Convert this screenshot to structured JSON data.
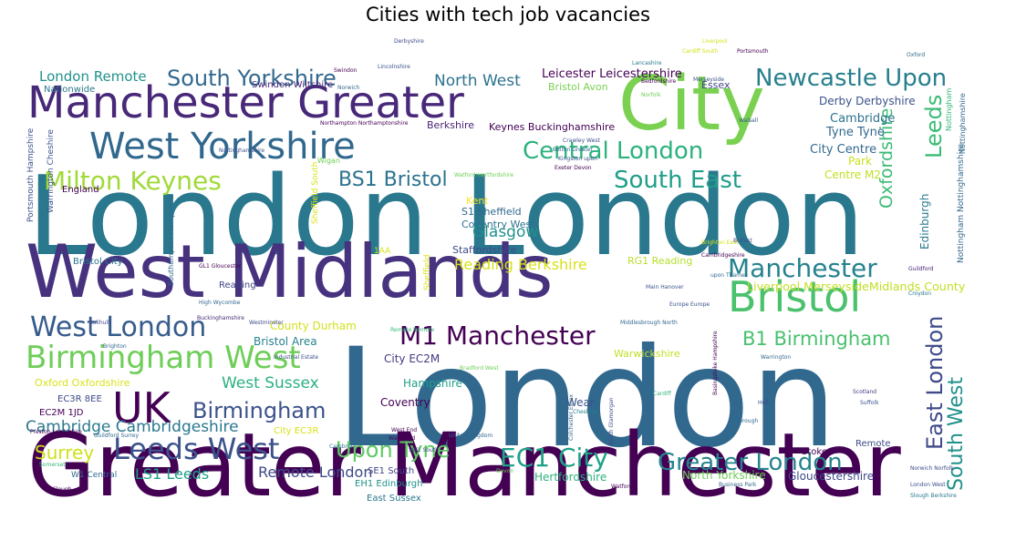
{
  "chart_data": {
    "type": "wordcloud",
    "title": "Cities with tech job vacancies",
    "background": "#ffffff",
    "colormap": "viridis",
    "words": [
      {
        "text": "London",
        "weight": 100,
        "color": "#31688e"
      },
      {
        "text": "London London",
        "weight": 88,
        "color": "#2a788e"
      },
      {
        "text": "Greater Manchester",
        "weight": 84,
        "color": "#440154"
      },
      {
        "text": "West Midlands",
        "weight": 70,
        "color": "#46327e"
      },
      {
        "text": "City",
        "weight": 62,
        "color": "#7ad151"
      },
      {
        "text": "Manchester Greater",
        "weight": 45,
        "color": "#482878"
      },
      {
        "text": "West Yorkshire",
        "weight": 38,
        "color": "#31688e"
      },
      {
        "text": "Bristol",
        "weight": 36,
        "color": "#4ac16d"
      },
      {
        "text": "UK",
        "weight": 34,
        "color": "#440154"
      },
      {
        "text": "Birmingham West",
        "weight": 30,
        "color": "#6ece58"
      },
      {
        "text": "Leeds West",
        "weight": 27,
        "color": "#3b528b"
      },
      {
        "text": "West London",
        "weight": 26,
        "color": "#365c8d"
      },
      {
        "text": "Milton Keynes",
        "weight": 24,
        "color": "#a0da39"
      },
      {
        "text": "M1 Manchester",
        "weight": 24,
        "color": "#440154"
      },
      {
        "text": "EC1 City",
        "weight": 24,
        "color": "#1fa187"
      },
      {
        "text": "Manchester",
        "weight": 23,
        "color": "#26828e"
      },
      {
        "text": "Newcastle Upon",
        "weight": 22,
        "color": "#277f8e"
      },
      {
        "text": "Central London",
        "weight": 22,
        "color": "#2db27d"
      },
      {
        "text": "Greater London",
        "weight": 22,
        "color": "#25848e"
      },
      {
        "text": "South East",
        "weight": 22,
        "color": "#1f9e89"
      },
      {
        "text": "South Yorkshire",
        "weight": 21,
        "color": "#31688e"
      },
      {
        "text": "Birmingham",
        "weight": 21,
        "color": "#3b528b"
      },
      {
        "text": "East London",
        "weight": 21,
        "color": "#3e4a89"
      },
      {
        "text": "Leeds",
        "weight": 20,
        "color": "#3bbb75"
      },
      {
        "text": "Upon Tyne",
        "weight": 20,
        "color": "#5ec962"
      },
      {
        "text": "South West",
        "weight": 20,
        "color": "#21918c"
      },
      {
        "text": "BS1 Bristol",
        "weight": 19,
        "color": "#2c728e"
      },
      {
        "text": "B1 Birmingham",
        "weight": 18,
        "color": "#48c16e"
      },
      {
        "text": "Surrey",
        "weight": 17,
        "color": "#d0e11c"
      },
      {
        "text": "Oxfordshire",
        "weight": 16,
        "color": "#3bbb75"
      },
      {
        "text": "Cambridge Cambridgeshire",
        "weight": 15,
        "color": "#2a788e"
      },
      {
        "text": "West Sussex",
        "weight": 15,
        "color": "#2ab07f"
      },
      {
        "text": "North West",
        "weight": 14,
        "color": "#2c728e"
      },
      {
        "text": "Glasgow",
        "weight": 14,
        "color": "#21918c"
      },
      {
        "text": "Reading Berkshire",
        "weight": 13,
        "color": "#d8e219"
      },
      {
        "text": "LS1 Leeds",
        "weight": 13,
        "color": "#1fa187"
      },
      {
        "text": "Remote London",
        "weight": 13,
        "color": "#3e4a89"
      },
      {
        "text": "London Remote",
        "weight": 12,
        "color": "#21918c"
      },
      {
        "text": "Leicester Leicestershire",
        "weight": 11,
        "color": "#440154"
      },
      {
        "text": "Tyne Tyne",
        "weight": 11,
        "color": "#31688e"
      },
      {
        "text": "Cambridge",
        "weight": 11,
        "color": "#2c728e"
      },
      {
        "text": "City Centre",
        "weight": 11,
        "color": "#31688e"
      },
      {
        "text": "Derby Derbyshire",
        "weight": 10,
        "color": "#3b528b"
      },
      {
        "text": "Liverpool MerseysideMidlands County",
        "weight": 10,
        "color": "#c2df23"
      },
      {
        "text": "City EC2M",
        "weight": 10,
        "color": "#443983"
      },
      {
        "text": "Hampshire",
        "weight": 10,
        "color": "#1f9e89"
      },
      {
        "text": "Coventry",
        "weight": 10,
        "color": "#440154"
      },
      {
        "text": "Wear",
        "weight": 10,
        "color": "#3b528b"
      },
      {
        "text": "Hertfordshire",
        "weight": 10,
        "color": "#2db27d"
      },
      {
        "text": "North Yorkshire",
        "weight": 10,
        "color": "#6ece58"
      },
      {
        "text": "Gloucestershire",
        "weight": 10,
        "color": "#3e4a89"
      },
      {
        "text": "Bristol Area",
        "weight": 10,
        "color": "#26828e"
      },
      {
        "text": "County Durham",
        "weight": 10,
        "color": "#d2e21b"
      },
      {
        "text": "Edinburgh",
        "weight": 10,
        "color": "#2a788e"
      },
      {
        "text": "Park",
        "weight": 10,
        "color": "#c8e020"
      },
      {
        "text": "Centre M2",
        "weight": 9,
        "color": "#c2df23"
      },
      {
        "text": "Keynes Buckinghamshire",
        "weight": 9,
        "color": "#440154"
      },
      {
        "text": "Berkshire",
        "weight": 9,
        "color": "#482475"
      },
      {
        "text": "Bristol Avon",
        "weight": 9,
        "color": "#7ad151"
      },
      {
        "text": "Essex",
        "weight": 9,
        "color": "#414487"
      },
      {
        "text": "S1 Sheffield",
        "weight": 9,
        "color": "#31688e"
      },
      {
        "text": "Coventry West",
        "weight": 9,
        "color": "#2c728e"
      },
      {
        "text": "Staffordshire",
        "weight": 9,
        "color": "#3e4a89"
      },
      {
        "text": "Kent",
        "weight": 9,
        "color": "#fde725"
      },
      {
        "text": "RG1 Reading",
        "weight": 9,
        "color": "#b5de2b"
      },
      {
        "text": "Warwickshire",
        "weight": 8,
        "color": "#c2df23"
      },
      {
        "text": "Oxford Oxfordshire",
        "weight": 9,
        "color": "#d8e219"
      },
      {
        "text": "EC3R 8EE",
        "weight": 8,
        "color": "#3e4a89"
      },
      {
        "text": "EC2M 1JD",
        "weight": 8,
        "color": "#440154"
      },
      {
        "text": "City EC3R",
        "weight": 8,
        "color": "#d8e219"
      },
      {
        "text": "SE1 South",
        "weight": 8,
        "color": "#414487"
      },
      {
        "text": "EH1 Edinburgh",
        "weight": 8,
        "color": "#21918c"
      },
      {
        "text": "East Sussex",
        "weight": 8,
        "color": "#2a788e"
      },
      {
        "text": "Reading",
        "weight": 8,
        "color": "#414487"
      },
      {
        "text": "Bristol City",
        "weight": 8,
        "color": "#2a788e"
      },
      {
        "text": "England",
        "weight": 8,
        "color": "#440154"
      },
      {
        "text": "Nationwide",
        "weight": 8,
        "color": "#2a788e"
      },
      {
        "text": "Portsmouth Hampshire",
        "weight": 8,
        "color": "#3b528b"
      },
      {
        "text": "Warrington Cheshire",
        "weight": 8,
        "color": "#3b528b"
      },
      {
        "text": "Sheffield South",
        "weight": 8,
        "color": "#d8e219"
      },
      {
        "text": "Southampton Hampshire",
        "weight": 8,
        "color": "#31688e"
      },
      {
        "text": "Sheffield",
        "weight": 8,
        "color": "#d8e219"
      },
      {
        "text": "Nottingham Nottinghamshire",
        "weight": 8,
        "color": "#31688e"
      },
      {
        "text": "Nottinghamshire",
        "weight": 7,
        "color": "#31688e"
      },
      {
        "text": "Nottingham",
        "weight": 7,
        "color": "#35b779"
      },
      {
        "text": "Swindon Wiltshire",
        "weight": 7,
        "color": "#482878"
      },
      {
        "text": "Stoke",
        "weight": 7,
        "color": "#440154"
      },
      {
        "text": "Remote",
        "weight": 7,
        "color": "#3e4a89"
      },
      {
        "text": "W1 Central",
        "weight": 6,
        "color": "#31688e"
      },
      {
        "text": "Wigan",
        "weight": 6,
        "color": "#6ece58"
      },
      {
        "text": "1AA",
        "weight": 7,
        "color": "#d2e21b"
      },
      {
        "text": "Scotland",
        "weight": 5,
        "color": "#443983"
      },
      {
        "text": "Suffolk",
        "weight": 5,
        "color": "#3b528b"
      },
      {
        "text": "Cardiff",
        "weight": 5,
        "color": "#35b779"
      },
      {
        "text": "Solihull",
        "weight": 5,
        "color": "#3e4a89"
      },
      {
        "text": "High Wycombe",
        "weight": 5,
        "color": "#31688e"
      },
      {
        "text": "Guildford",
        "weight": 5,
        "color": "#482878"
      },
      {
        "text": "Croydon",
        "weight": 5,
        "color": "#2a788e"
      },
      {
        "text": "Watford",
        "weight": 5,
        "color": "#440154"
      },
      {
        "text": "Business Park",
        "weight": 5,
        "color": "#31688e"
      },
      {
        "text": "Norwich Norfolk",
        "weight": 5,
        "color": "#3e4a89"
      },
      {
        "text": "London West",
        "weight": 5,
        "color": "#3b528b"
      },
      {
        "text": "Slough Berkshire",
        "weight": 5,
        "color": "#2a788e"
      },
      {
        "text": "Europe Europe",
        "weight": 5,
        "color": "#3b528b"
      },
      {
        "text": "Middlesbrough North",
        "weight": 5,
        "color": "#31688e"
      },
      {
        "text": "Cheshire",
        "weight": 5,
        "color": "#26828e"
      },
      {
        "text": "Devon",
        "weight": 5,
        "color": "#6ece58"
      },
      {
        "text": "Hull",
        "weight": 5,
        "color": "#3e4a89"
      },
      {
        "text": "Somerset",
        "weight": 5,
        "color": "#35b779"
      },
      {
        "text": "Slough",
        "weight": 5,
        "color": "#440154"
      },
      {
        "text": "Cambria",
        "weight": 5,
        "color": "#2a788e"
      },
      {
        "text": "Brighton",
        "weight": 5,
        "color": "#31688e"
      },
      {
        "text": "Lincolnshire",
        "weight": 5,
        "color": "#3b528b"
      },
      {
        "text": "Derbyshire",
        "weight": 5,
        "color": "#3e4a89"
      },
      {
        "text": "Liverpool",
        "weight": 5,
        "color": "#d2e21b"
      },
      {
        "text": "Oxford",
        "weight": 5,
        "color": "#31688e"
      },
      {
        "text": "Lancashire",
        "weight": 5,
        "color": "#2a788e"
      },
      {
        "text": "Bedfordshire",
        "weight": 5,
        "color": "#440154"
      },
      {
        "text": "Merseyside",
        "weight": 5,
        "color": "#3b528b"
      },
      {
        "text": "Norfolk",
        "weight": 5,
        "color": "#6ece58"
      },
      {
        "text": "Walsall",
        "weight": 5,
        "color": "#3b528b"
      },
      {
        "text": "Swindon",
        "weight": 5,
        "color": "#440154"
      },
      {
        "text": "Norwich",
        "weight": 5,
        "color": "#31688e"
      },
      {
        "text": "Northampton Northamptonshire",
        "weight": 5,
        "color": "#440154"
      },
      {
        "text": "Nottinghamshire",
        "weight": 5,
        "color": "#3b528b"
      },
      {
        "text": "GL1 Gloucester",
        "weight": 5,
        "color": "#440154"
      },
      {
        "text": "Westminster",
        "weight": 5,
        "color": "#3e4a89"
      },
      {
        "text": "Buckinghamshire",
        "weight": 5,
        "color": "#482878"
      },
      {
        "text": "Industrial Estate",
        "weight": 5,
        "color": "#3b528b"
      },
      {
        "text": "Preston Lancashire",
        "weight": 5,
        "color": "#440154"
      },
      {
        "text": "Guildford Surrey",
        "weight": 5,
        "color": "#31688e"
      },
      {
        "text": "Remote Remote",
        "weight": 5,
        "color": "#35b779"
      },
      {
        "text": "Warrington",
        "weight": 5,
        "color": "#31688e"
      },
      {
        "text": "Basingstoke Hampshire",
        "weight": 5,
        "color": "#440154"
      },
      {
        "text": "Colchester Essex",
        "weight": 5,
        "color": "#31688e"
      },
      {
        "text": "Bradford West",
        "weight": 5,
        "color": "#6ece58"
      },
      {
        "text": "Crawley West",
        "weight": 5,
        "color": "#3b528b"
      },
      {
        "text": "Bolton Greater",
        "weight": 5,
        "color": "#31688e"
      },
      {
        "text": "Exeter Devon",
        "weight": 5,
        "color": "#440154"
      },
      {
        "text": "Kingston upon",
        "weight": 5,
        "color": "#3b528b"
      },
      {
        "text": "Watford Hertfordshire",
        "weight": 5,
        "color": "#6ece58"
      },
      {
        "text": "Brighton East",
        "weight": 5,
        "color": "#d2e21b"
      },
      {
        "text": "Cambridgeshire",
        "weight": 5,
        "color": "#440154"
      },
      {
        "text": "upon Thames",
        "weight": 5,
        "color": "#31688e"
      },
      {
        "text": "Belfast",
        "weight": 5,
        "color": "#3b528b"
      },
      {
        "text": "United Kingdom",
        "weight": 5,
        "color": "#31688e"
      },
      {
        "text": "South Glamorgan",
        "weight": 5,
        "color": "#3e4a89"
      },
      {
        "text": "Wakefield",
        "weight": 5,
        "color": "#440154"
      },
      {
        "text": "West End",
        "weight": 5,
        "color": "#440154"
      },
      {
        "text": "SW1 South",
        "weight": 5,
        "color": "#3e4a89"
      },
      {
        "text": "Main Hanover",
        "weight": 5,
        "color": "#3b528b"
      },
      {
        "text": "Borough",
        "weight": 5,
        "color": "#31688e"
      },
      {
        "text": "Portsmouth",
        "weight": 5,
        "color": "#440154"
      },
      {
        "text": "Cardiff South",
        "weight": 5,
        "color": "#d2e21b"
      }
    ]
  }
}
